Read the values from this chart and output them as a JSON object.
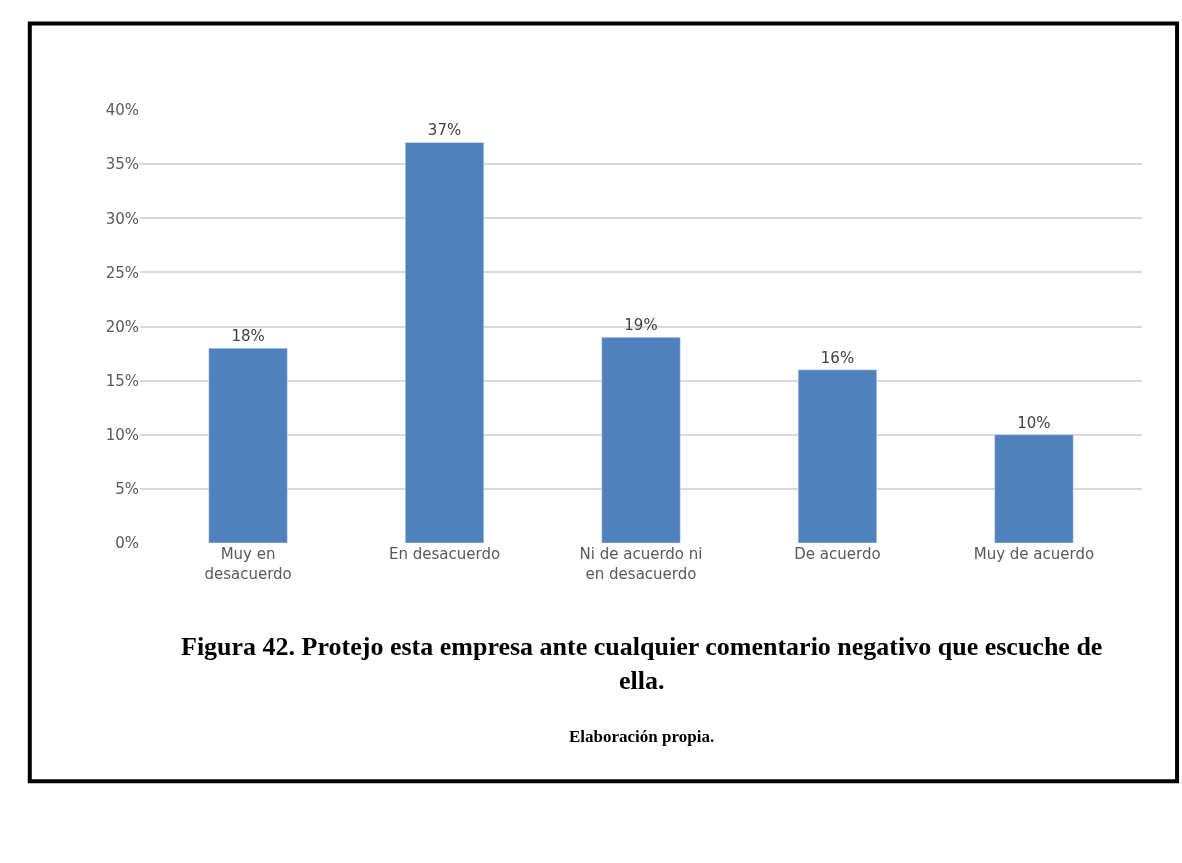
{
  "chart_data": {
    "type": "bar",
    "title": "Figura 42. Protejo esta empresa ante cualquier comentario negativo que escuche de ella.",
    "categories": [
      "Muy en desacuerdo",
      "En desacuerdo",
      "Ni de acuerdo ni en desacuerdo",
      "De acuerdo",
      "Muy de acuerdo"
    ],
    "values": [
      18,
      37,
      19,
      16,
      10
    ],
    "value_labels": [
      "18%",
      "37%",
      "19%",
      "16%",
      "10%"
    ],
    "color": "#4f81bd",
    "ylim": [
      0,
      40
    ],
    "yticks": [
      {
        "value": 0,
        "label": "0%"
      },
      {
        "value": 5,
        "label": "5%"
      },
      {
        "value": 10,
        "label": "10%"
      },
      {
        "value": 15,
        "label": "15%"
      },
      {
        "value": 20,
        "label": "20%"
      },
      {
        "value": 25,
        "label": "25%"
      },
      {
        "value": 30,
        "label": "30%"
      },
      {
        "value": 35,
        "label": "35%"
      },
      {
        "value": 40,
        "label": "40%"
      }
    ],
    "grid": "y",
    "annotations": [
      "Elaboración propia."
    ]
  }
}
